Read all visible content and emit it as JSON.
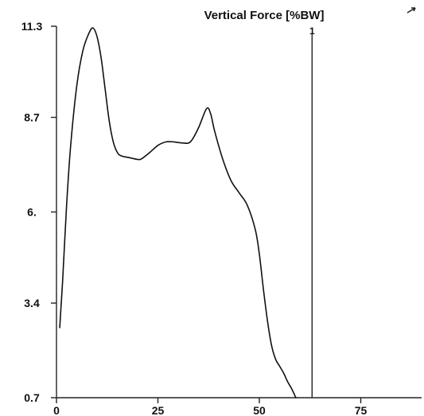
{
  "chart_data": {
    "type": "line",
    "title": "Vertical Force [%BW]",
    "xlabel": "",
    "ylabel": "",
    "xlim": [
      0,
      90
    ],
    "ylim": [
      0.7,
      11.3
    ],
    "x_ticks": [
      0,
      25,
      50,
      75
    ],
    "x_tick_labels": [
      "0",
      "25",
      "50",
      "75"
    ],
    "y_ticks": [
      0.7,
      3.4,
      6.0,
      8.7,
      11.3
    ],
    "y_tick_labels": [
      "0.7",
      "3.4",
      "6.",
      "8.7",
      "11.3"
    ],
    "grid": false,
    "legend": "none",
    "vertical_marker": {
      "x": 63,
      "label": "1"
    },
    "series": [
      {
        "values": [
          [
            0.8,
            2.7
          ],
          [
            1.5,
            4.0
          ],
          [
            2.5,
            6.2
          ],
          [
            3.5,
            7.9
          ],
          [
            5,
            9.6
          ],
          [
            6.5,
            10.6
          ],
          [
            8,
            11.1
          ],
          [
            9,
            11.25
          ],
          [
            10,
            11.0
          ],
          [
            11,
            10.4
          ],
          [
            12,
            9.5
          ],
          [
            13,
            8.6
          ],
          [
            14,
            8.0
          ],
          [
            15,
            7.7
          ],
          [
            16,
            7.6
          ],
          [
            18,
            7.55
          ],
          [
            20,
            7.5
          ],
          [
            21,
            7.52
          ],
          [
            23,
            7.7
          ],
          [
            25,
            7.9
          ],
          [
            27,
            8.0
          ],
          [
            29,
            8.0
          ],
          [
            31,
            7.97
          ],
          [
            33,
            8.0
          ],
          [
            35,
            8.4
          ],
          [
            37,
            8.95
          ],
          [
            38,
            8.8
          ],
          [
            39,
            8.3
          ],
          [
            41,
            7.5
          ],
          [
            43,
            6.9
          ],
          [
            45,
            6.55
          ],
          [
            47,
            6.2
          ],
          [
            49,
            5.5
          ],
          [
            50,
            4.8
          ],
          [
            51,
            3.8
          ],
          [
            52,
            2.9
          ],
          [
            53,
            2.2
          ],
          [
            54,
            1.8
          ],
          [
            55,
            1.6
          ],
          [
            56,
            1.4
          ],
          [
            57,
            1.15
          ],
          [
            58,
            0.95
          ],
          [
            59,
            0.7
          ]
        ]
      }
    ]
  }
}
